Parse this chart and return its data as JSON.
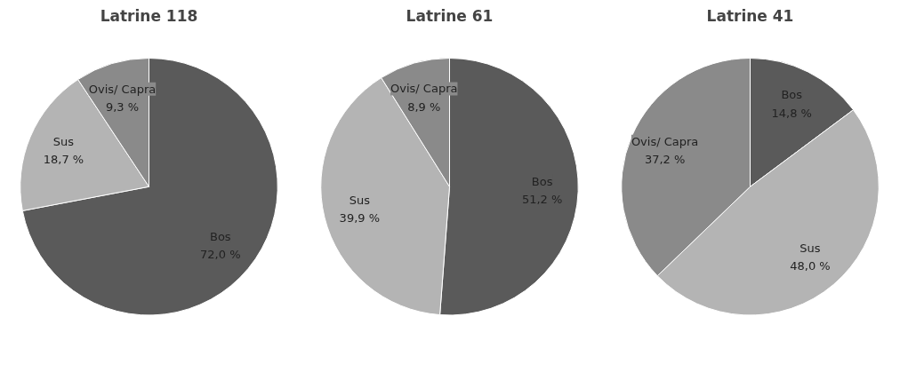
{
  "chart_data": [
    {
      "type": "pie",
      "title": "Latrine 118",
      "categories": [
        "Bos",
        "Sus",
        "Ovis/ Capra"
      ],
      "values": [
        72.0,
        18.7,
        9.3
      ],
      "colors": [
        "#5a5a5a",
        "#b4b4b4",
        "#8a8a8a"
      ],
      "value_labels": [
        "72,0 %",
        "18,7 %",
        "9,3 %"
      ],
      "legend": false
    },
    {
      "type": "pie",
      "title": "Latrine 61",
      "categories": [
        "Bos",
        "Sus",
        "Ovis/ Capra"
      ],
      "values": [
        51.2,
        39.9,
        8.9
      ],
      "colors": [
        "#5a5a5a",
        "#b4b4b4",
        "#8a8a8a"
      ],
      "value_labels": [
        "51,2 %",
        "39,9 %",
        "8,9 %"
      ],
      "legend": false
    },
    {
      "type": "pie",
      "title": "Latrine 41",
      "categories": [
        "Bos",
        "Sus",
        "Ovis/ Capra"
      ],
      "values": [
        14.8,
        48.0,
        37.2
      ],
      "colors": [
        "#5a5a5a",
        "#b4b4b4",
        "#8a8a8a"
      ],
      "value_labels": [
        "14,8 %",
        "48,0 %",
        "37,2 %"
      ],
      "legend": false
    }
  ]
}
